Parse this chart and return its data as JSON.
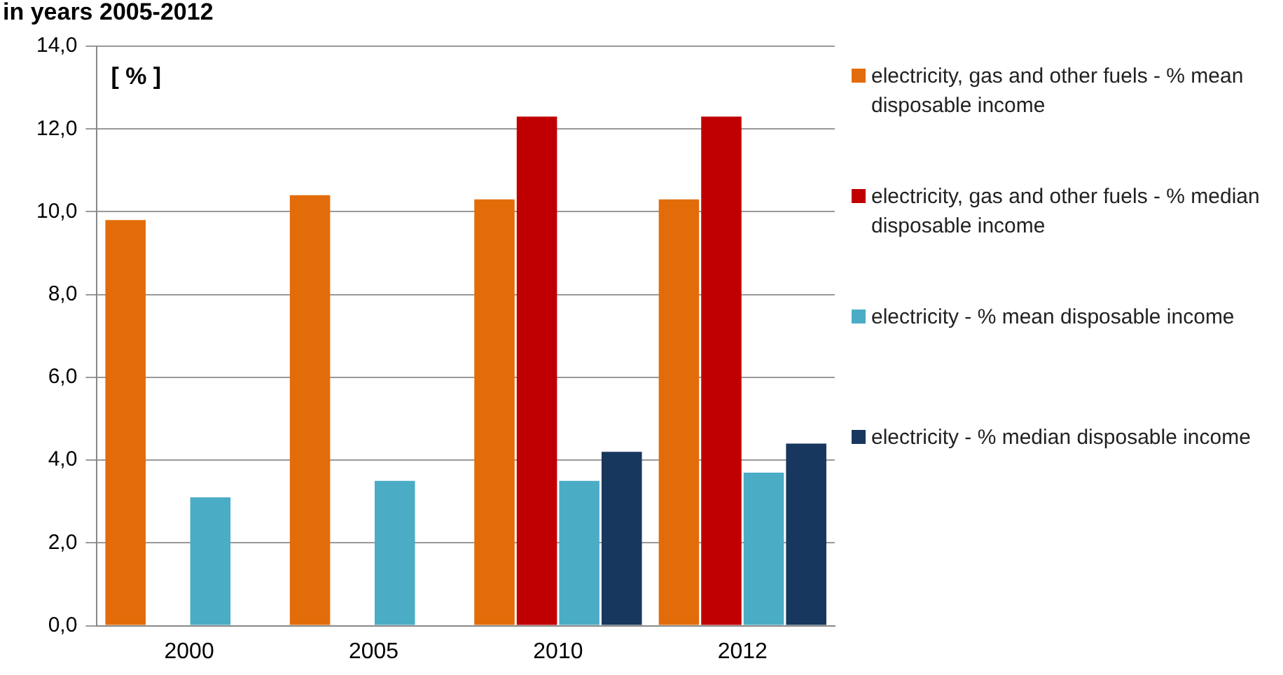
{
  "chart_data": {
    "type": "bar",
    "title": "in years 2005-2012",
    "annotations": [
      "[ % ]"
    ],
    "categories": [
      "2000",
      "2005",
      "2010",
      "2012"
    ],
    "series": [
      {
        "name": "electricity, gas and other fuels  - % mean disposable income",
        "color": "#e36c0a",
        "values": [
          9.8,
          10.4,
          10.3,
          10.3
        ]
      },
      {
        "name": "electricity, gas and other fuels  - % median disposable income",
        "color": "#c00000",
        "values": [
          null,
          null,
          12.3,
          12.3
        ]
      },
      {
        "name": "electricity - % mean disposable income",
        "color": "#4bacc6",
        "values": [
          3.1,
          3.5,
          3.5,
          3.7
        ]
      },
      {
        "name": "electricity  - % median disposable income",
        "color": "#17375e",
        "values": [
          null,
          null,
          4.2,
          4.4
        ]
      }
    ],
    "ylim": [
      0,
      14
    ],
    "yticks": [
      {
        "value": 0,
        "label": "0,0"
      },
      {
        "value": 2,
        "label": "2,0"
      },
      {
        "value": 4,
        "label": "4,0"
      },
      {
        "value": 6,
        "label": "6,0"
      },
      {
        "value": 8,
        "label": "8,0"
      },
      {
        "value": 10,
        "label": "10,0"
      },
      {
        "value": 12,
        "label": "12,0"
      },
      {
        "value": 14,
        "label": "14,0"
      }
    ],
    "grid": "y",
    "legend": "right"
  }
}
